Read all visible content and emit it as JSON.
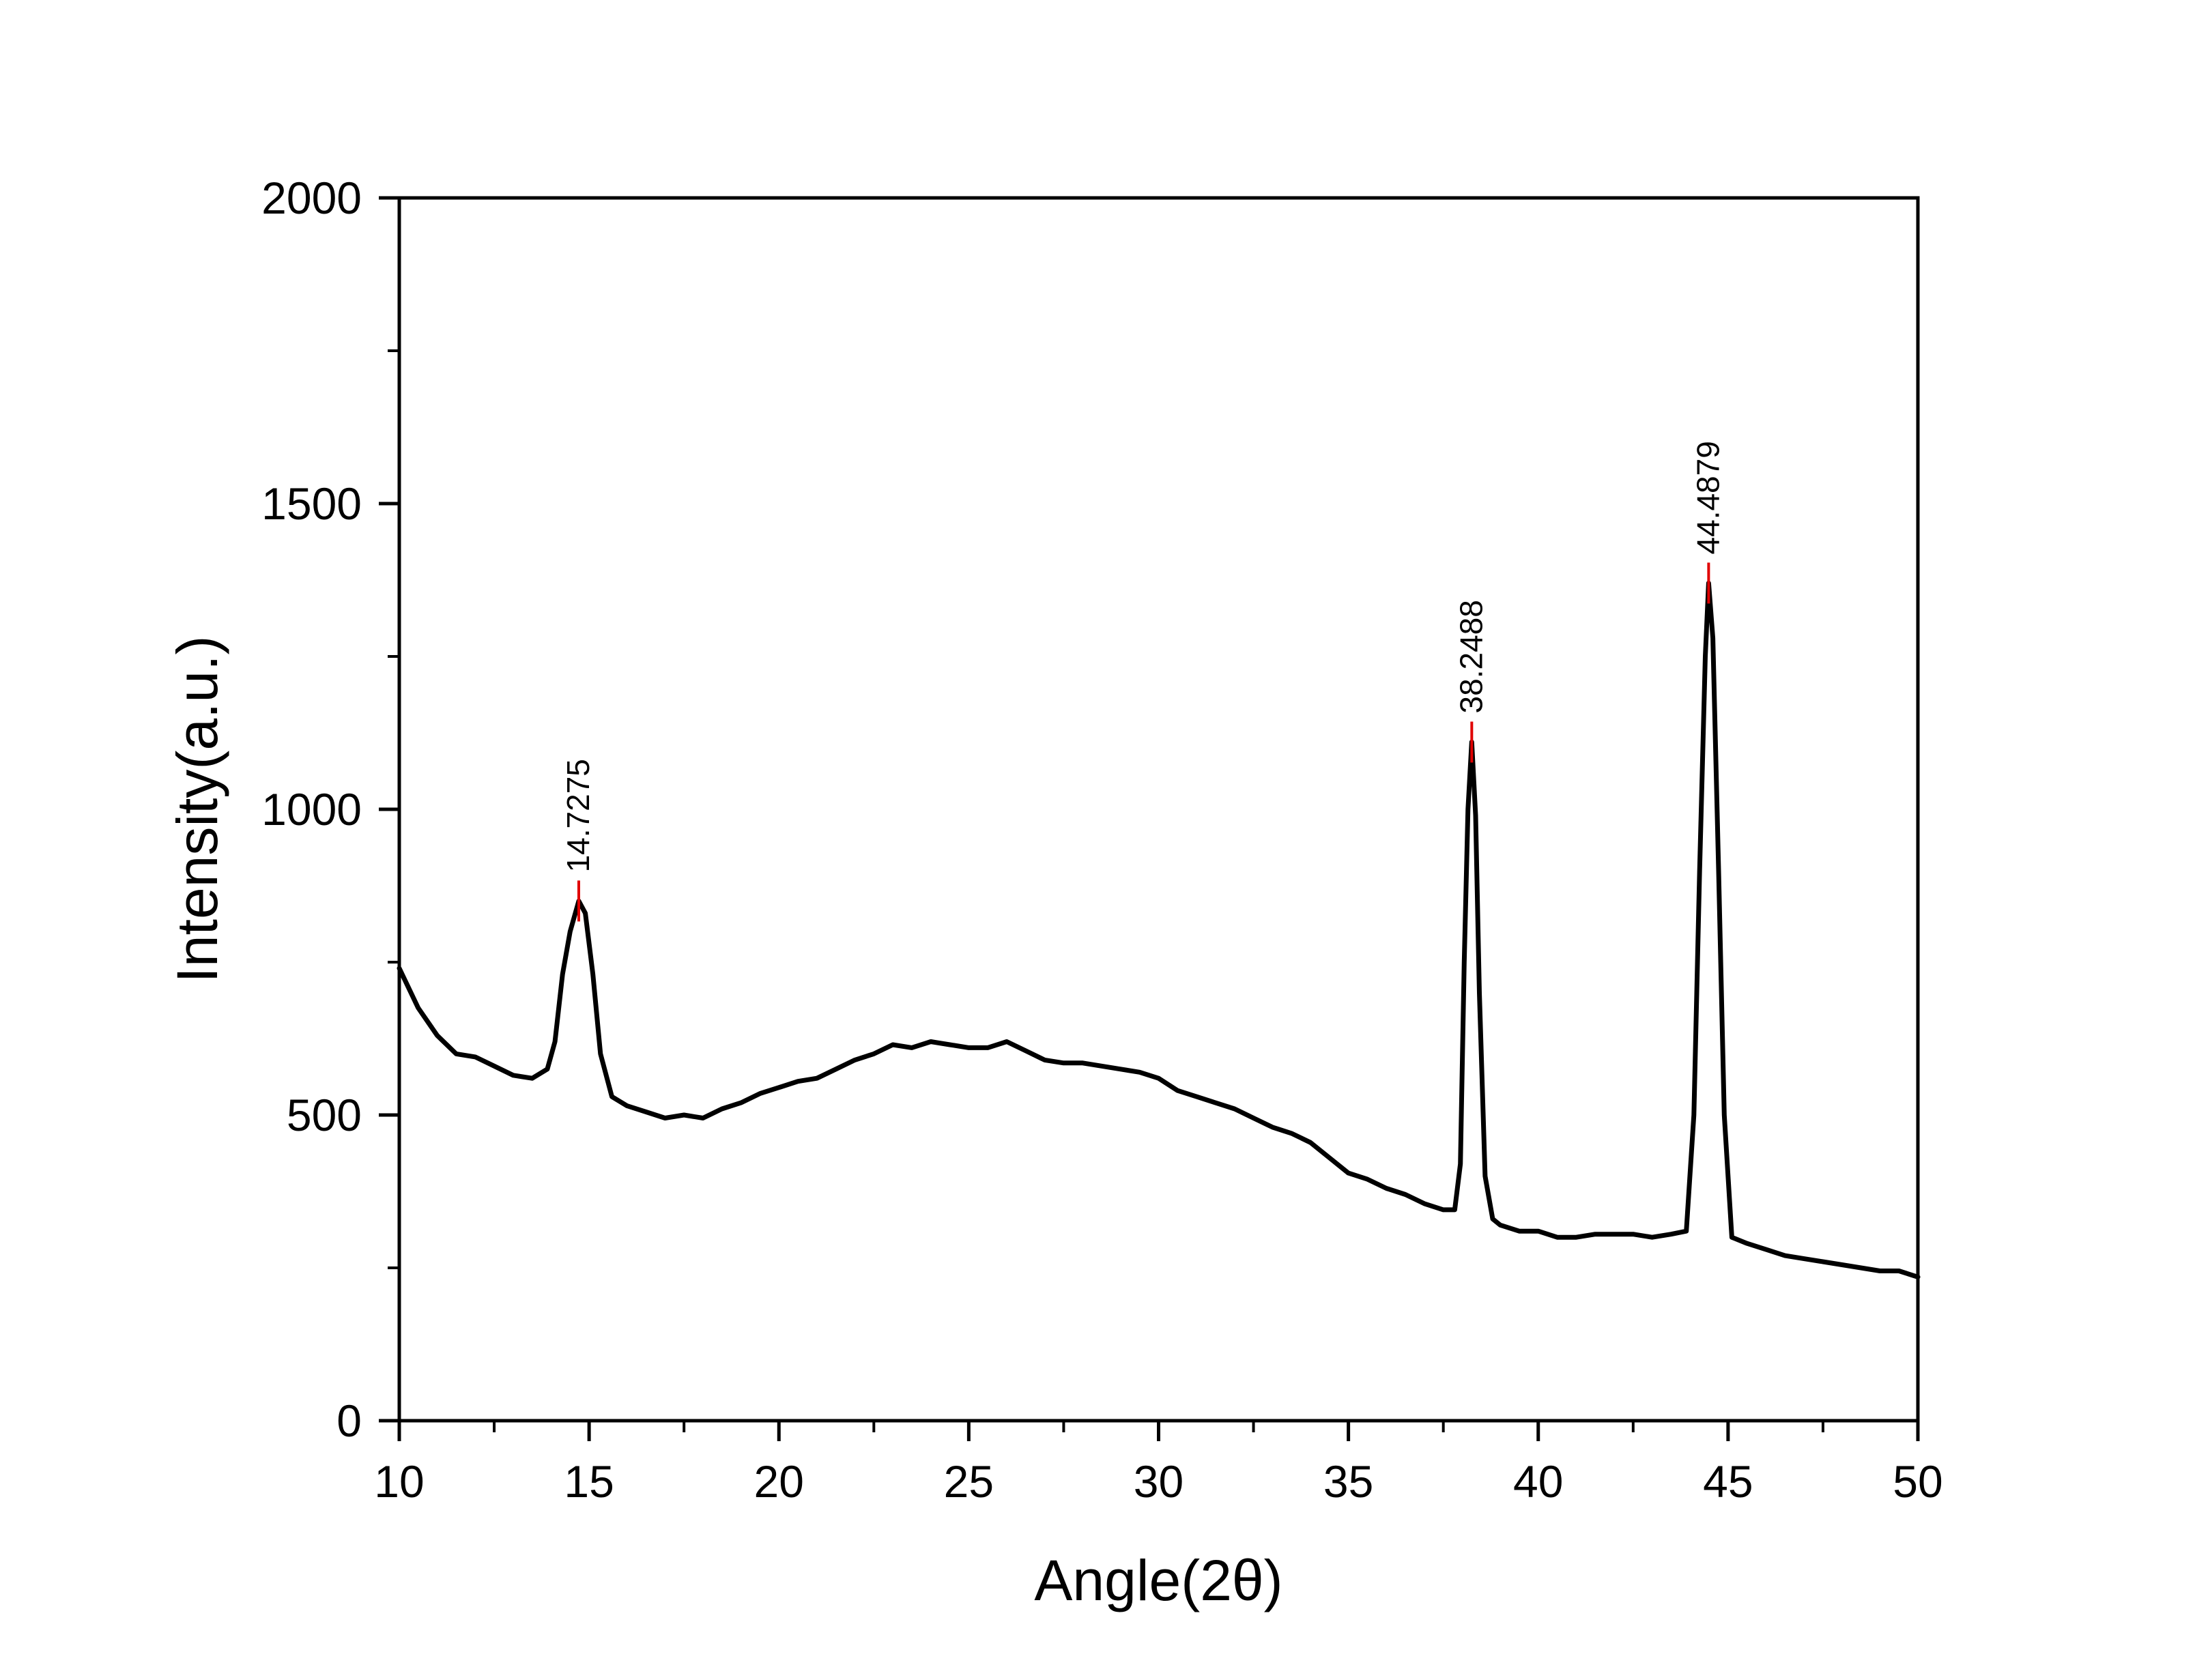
{
  "chart_data": {
    "type": "line",
    "title": "",
    "xlabel": "Angle(2θ)",
    "ylabel": "Intensity(a.u.)",
    "xlim": [
      10,
      50
    ],
    "ylim": [
      0,
      2000
    ],
    "x_ticks": [
      10,
      15,
      20,
      25,
      30,
      35,
      40,
      45,
      50
    ],
    "y_ticks": [
      0,
      500,
      1000,
      1500,
      2000
    ],
    "grid": false,
    "legend": "none",
    "series": [
      {
        "color": "#000000",
        "x": [
          10,
          10.5,
          11,
          11.5,
          12,
          12.5,
          13,
          13.5,
          13.9,
          14.1,
          14.3,
          14.5,
          14.7275,
          14.9,
          15.1,
          15.3,
          15.6,
          16,
          16.5,
          17,
          17.5,
          18,
          18.5,
          19,
          19.5,
          20,
          20.5,
          21,
          21.5,
          22,
          22.5,
          23,
          23.5,
          24,
          24.5,
          25,
          25.5,
          26,
          26.5,
          27,
          27.5,
          28,
          28.5,
          29,
          29.5,
          30,
          30.5,
          31,
          31.5,
          32,
          32.5,
          33,
          33.5,
          34,
          34.5,
          35,
          35.5,
          36,
          36.5,
          37,
          37.5,
          37.8,
          37.95,
          38.05,
          38.15,
          38.2488,
          38.35,
          38.45,
          38.6,
          38.8,
          39,
          39.5,
          40,
          40.5,
          41,
          41.5,
          42,
          42.5,
          43,
          43.5,
          43.9,
          44.1,
          44.25,
          44.4,
          44.4879,
          44.6,
          44.75,
          44.9,
          45.1,
          45.5,
          46,
          46.5,
          47,
          47.5,
          48,
          48.5,
          49,
          49.5,
          50
        ],
        "y": [
          740,
          675,
          630,
          600,
          595,
          580,
          565,
          560,
          575,
          620,
          730,
          800,
          850,
          830,
          730,
          600,
          530,
          515,
          505,
          495,
          500,
          495,
          510,
          520,
          535,
          545,
          555,
          560,
          575,
          590,
          600,
          615,
          610,
          620,
          615,
          610,
          610,
          620,
          605,
          590,
          585,
          585,
          580,
          575,
          570,
          560,
          540,
          530,
          520,
          510,
          495,
          480,
          470,
          455,
          430,
          405,
          395,
          380,
          370,
          355,
          345,
          345,
          420,
          750,
          1000,
          1110,
          990,
          700,
          400,
          330,
          320,
          310,
          310,
          300,
          300,
          305,
          305,
          305,
          300,
          305,
          310,
          500,
          900,
          1250,
          1370,
          1280,
          900,
          500,
          300,
          290,
          280,
          270,
          265,
          260,
          255,
          250,
          245,
          245,
          235
        ]
      }
    ],
    "annotations": [
      {
        "x": 14.7275,
        "y": 850,
        "text": "14.7275"
      },
      {
        "x": 38.2488,
        "y": 1110,
        "text": "38.2488"
      },
      {
        "x": 44.4879,
        "y": 1370,
        "text": "44.4879"
      }
    ]
  }
}
